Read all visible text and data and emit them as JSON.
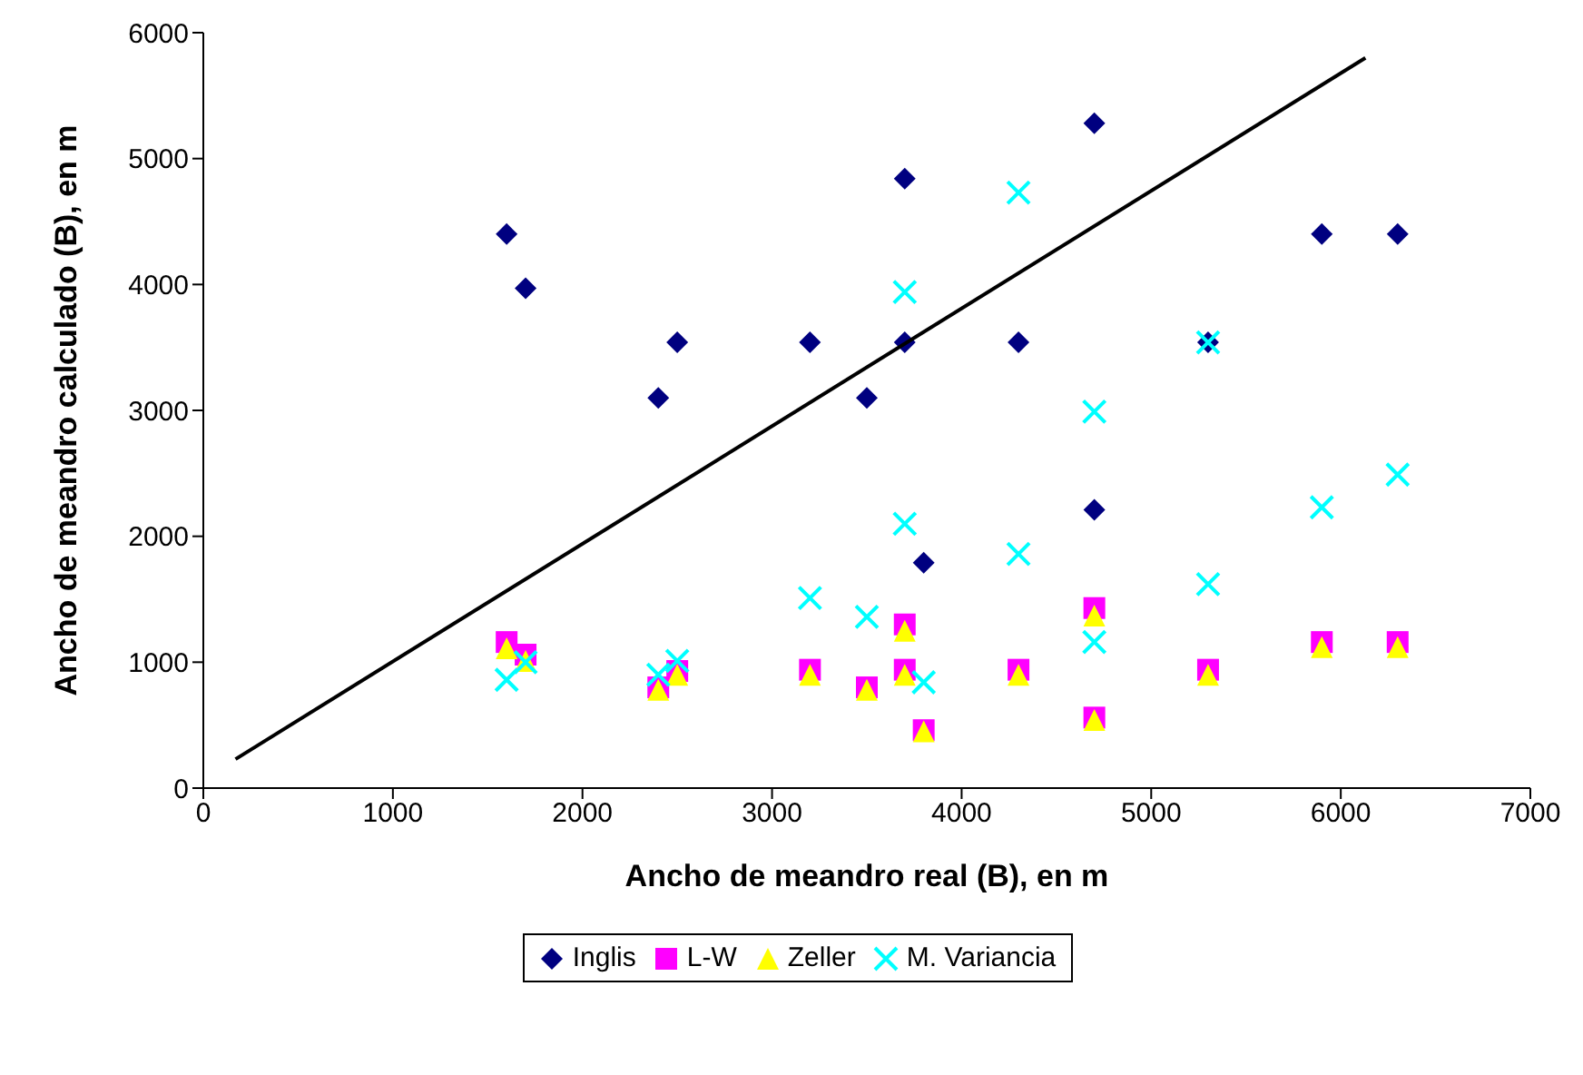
{
  "chart_data": {
    "type": "scatter",
    "xlabel": "Ancho de meandro real (B), en m",
    "ylabel": "Ancho de meandro calculado (B), en m",
    "xlim": [
      0,
      7000
    ],
    "xticks": [
      0,
      1000,
      2000,
      3000,
      4000,
      5000,
      6000,
      7000
    ],
    "ylim": [
      0,
      6000
    ],
    "yticks": [
      0,
      1000,
      2000,
      3000,
      4000,
      5000,
      6000
    ],
    "grid": false,
    "legend": "bottom",
    "series": [
      {
        "name": "Inglis",
        "color": "#000080",
        "marker": "diamond",
        "x": [
          1600,
          1700,
          2400,
          2500,
          3200,
          3500,
          3700,
          3700,
          3800,
          4300,
          4700,
          4700,
          5300,
          5900,
          6300
        ],
        "values": [
          4400,
          3970,
          3100,
          3540,
          3540,
          3100,
          4840,
          3540,
          1790,
          3540,
          5280,
          2210,
          3540,
          4400,
          4400
        ]
      },
      {
        "name": "L-W",
        "color": "#ff00ff",
        "marker": "square",
        "x": [
          1600,
          1700,
          2400,
          2500,
          3200,
          3500,
          3700,
          3700,
          3800,
          4300,
          4700,
          4700,
          5300,
          5900,
          6300
        ],
        "values": [
          1160,
          1060,
          800,
          930,
          940,
          800,
          1300,
          940,
          460,
          940,
          1430,
          560,
          940,
          1160,
          1160
        ]
      },
      {
        "name": "Zeller",
        "color": "#ffff00",
        "marker": "triangle",
        "x": [
          1600,
          1700,
          2400,
          2500,
          3200,
          3500,
          3700,
          3700,
          3800,
          4300,
          4700,
          4700,
          5300,
          5900,
          6300
        ],
        "values": [
          1110,
          1010,
          780,
          900,
          900,
          780,
          1250,
          900,
          450,
          900,
          1370,
          540,
          900,
          1120,
          1120
        ]
      },
      {
        "name": "M. Variancia",
        "color": "#00ffff",
        "marker": "cross",
        "x": [
          1600,
          1700,
          2400,
          2500,
          3200,
          3500,
          3700,
          3700,
          3800,
          4300,
          4300,
          4700,
          4700,
          5300,
          5300,
          5900,
          6300
        ],
        "values": [
          860,
          1000,
          900,
          1010,
          1510,
          1360,
          3940,
          2100,
          840,
          4730,
          1860,
          2990,
          1160,
          3540,
          1620,
          2230,
          2490
        ]
      },
      {
        "type": "line",
        "color": "#000000",
        "marker": "none",
        "x": [
          170,
          6130
        ],
        "values": [
          230,
          5800
        ]
      }
    ]
  }
}
